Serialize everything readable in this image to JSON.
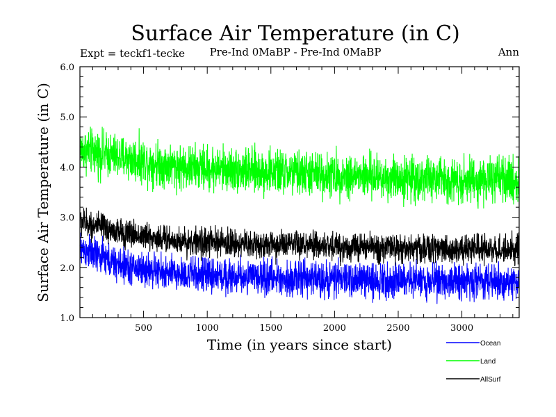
{
  "chart_data": {
    "type": "line",
    "title": "Surface Air Temperature (in C)",
    "subtitle_left": "Expt = teckf1-tecke",
    "subtitle_center": "Pre-Ind 0MaBP - Pre-Ind 0MaBP",
    "subtitle_right": "Ann",
    "xlabel": "Time (in years since start)",
    "ylabel": "Surface Air Temperature (in C)",
    "xlim": [
      0,
      3450
    ],
    "ylim": [
      1.0,
      6.0
    ],
    "xticks": [
      500,
      1000,
      1500,
      2000,
      2500,
      3000
    ],
    "xtick_labels": [
      "500",
      "1000",
      "1500",
      "2000",
      "2500",
      "3000"
    ],
    "yticks": [
      1.0,
      2.0,
      3.0,
      4.0,
      5.0,
      6.0
    ],
    "ytick_labels": [
      "1.0",
      "2.0",
      "3.0",
      "4.0",
      "5.0",
      "6.0"
    ],
    "legend_position": "bottom-right-outside",
    "series": [
      {
        "name": "Ocean",
        "color": "#0000ff",
        "noise_amplitude": 0.17,
        "trend": [
          [
            0,
            2.38
          ],
          [
            300,
            2.05
          ],
          [
            700,
            1.88
          ],
          [
            1200,
            1.82
          ],
          [
            2000,
            1.76
          ],
          [
            3450,
            1.72
          ]
        ]
      },
      {
        "name": "Land",
        "color": "#00ff00",
        "noise_amplitude": 0.22,
        "trend": [
          [
            0,
            4.35
          ],
          [
            300,
            4.2
          ],
          [
            800,
            4.0
          ],
          [
            1500,
            3.9
          ],
          [
            2500,
            3.78
          ],
          [
            3450,
            3.72
          ]
        ]
      },
      {
        "name": "AllSurf",
        "color": "#000000",
        "noise_amplitude": 0.14,
        "trend": [
          [
            0,
            2.92
          ],
          [
            300,
            2.7
          ],
          [
            800,
            2.52
          ],
          [
            1500,
            2.45
          ],
          [
            2500,
            2.38
          ],
          [
            3450,
            2.36
          ]
        ]
      }
    ]
  }
}
